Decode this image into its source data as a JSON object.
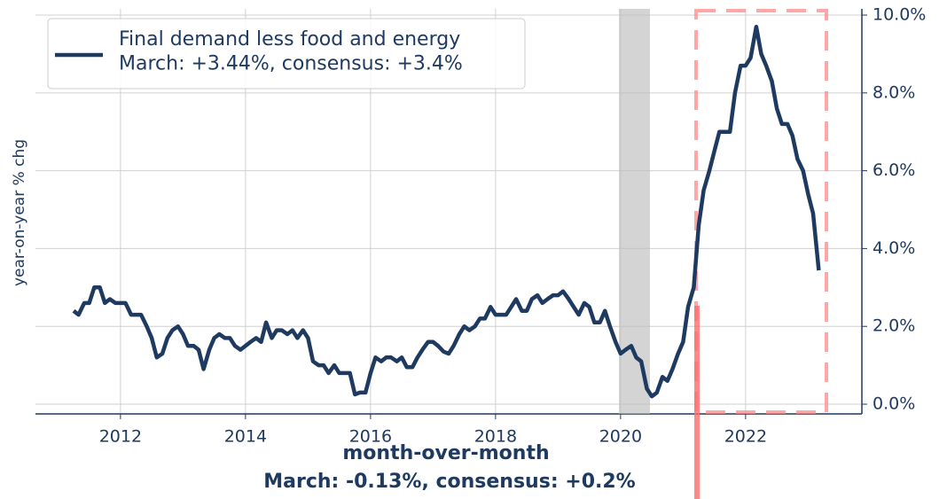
{
  "chart_data": {
    "type": "line",
    "ylabel": "year-on-year % chg",
    "annotations": [
      "month-over-month",
      "March:  -0.13%, consensus: +0.2%"
    ],
    "legend_position": "upper left",
    "grid": true,
    "xlim": [
      2010.64,
      2023.86
    ],
    "xticks": [
      2012,
      2014,
      2016,
      2018,
      2020,
      2022
    ],
    "ylim": [
      -0.25,
      10.16
    ],
    "yticks": [
      {
        "value": 0,
        "label": "0.0%"
      },
      {
        "value": 2,
        "label": "2.0%"
      },
      {
        "value": 4,
        "label": "4.0%"
      },
      {
        "value": 6,
        "label": "6.0%"
      },
      {
        "value": 8,
        "label": "8.0%"
      },
      {
        "value": 10,
        "label": "10.0%"
      }
    ],
    "x": [
      2011.25,
      2011.33,
      2011.42,
      2011.5,
      2011.58,
      2011.67,
      2011.75,
      2011.83,
      2011.92,
      2012,
      2012.08,
      2012.17,
      2012.25,
      2012.33,
      2012.42,
      2012.5,
      2012.58,
      2012.67,
      2012.75,
      2012.83,
      2012.92,
      2013,
      2013.08,
      2013.17,
      2013.25,
      2013.33,
      2013.42,
      2013.5,
      2013.58,
      2013.67,
      2013.75,
      2013.83,
      2013.92,
      2014,
      2014.08,
      2014.17,
      2014.25,
      2014.33,
      2014.42,
      2014.5,
      2014.58,
      2014.67,
      2014.75,
      2014.83,
      2014.92,
      2015,
      2015.08,
      2015.17,
      2015.25,
      2015.33,
      2015.42,
      2015.5,
      2015.58,
      2015.67,
      2015.75,
      2015.83,
      2015.92,
      2016,
      2016.08,
      2016.17,
      2016.25,
      2016.33,
      2016.42,
      2016.5,
      2016.58,
      2016.67,
      2016.75,
      2016.83,
      2016.92,
      2017,
      2017.08,
      2017.17,
      2017.25,
      2017.33,
      2017.42,
      2017.5,
      2017.58,
      2017.67,
      2017.75,
      2017.83,
      2017.92,
      2018,
      2018.08,
      2018.17,
      2018.25,
      2018.33,
      2018.42,
      2018.5,
      2018.58,
      2018.67,
      2018.75,
      2018.83,
      2018.92,
      2019,
      2019.08,
      2019.17,
      2019.25,
      2019.33,
      2019.42,
      2019.5,
      2019.58,
      2019.67,
      2019.75,
      2019.83,
      2019.92,
      2020,
      2020.08,
      2020.17,
      2020.25,
      2020.33,
      2020.42,
      2020.5,
      2020.58,
      2020.67,
      2020.75,
      2020.83,
      2020.92,
      2021,
      2021.08,
      2021.17,
      2021.25,
      2021.33,
      2021.42,
      2021.5,
      2021.58,
      2021.67,
      2021.75,
      2021.83,
      2021.92,
      2022,
      2022.08,
      2022.17,
      2022.25,
      2022.33,
      2022.42,
      2022.5,
      2022.58,
      2022.67,
      2022.75,
      2022.83,
      2022.92,
      2023,
      2023.08,
      2023.17
    ],
    "series": [
      {
        "name": "Final demand less food and energy\nMarch:  +3.44%, consensus: +3.4%",
        "color": "#1f3a60",
        "values": [
          2.4,
          2.3,
          2.6,
          2.6,
          3.0,
          3.0,
          2.6,
          2.7,
          2.6,
          2.6,
          2.6,
          2.3,
          2.3,
          2.3,
          2.0,
          1.7,
          1.2,
          1.3,
          1.7,
          1.9,
          2.0,
          1.8,
          1.5,
          1.5,
          1.4,
          0.9,
          1.4,
          1.7,
          1.8,
          1.7,
          1.7,
          1.5,
          1.4,
          1.5,
          1.6,
          1.7,
          1.6,
          2.1,
          1.7,
          1.9,
          1.9,
          1.8,
          1.9,
          1.7,
          1.9,
          1.7,
          1.1,
          1.0,
          1.0,
          0.8,
          1.0,
          0.8,
          0.8,
          0.8,
          0.25,
          0.3,
          0.3,
          0.8,
          1.2,
          1.1,
          1.2,
          1.2,
          1.1,
          1.2,
          0.95,
          0.95,
          1.2,
          1.4,
          1.6,
          1.6,
          1.5,
          1.35,
          1.3,
          1.5,
          1.8,
          2.0,
          1.9,
          2.0,
          2.2,
          2.2,
          2.5,
          2.3,
          2.3,
          2.3,
          2.5,
          2.7,
          2.4,
          2.4,
          2.7,
          2.8,
          2.6,
          2.7,
          2.8,
          2.8,
          2.9,
          2.7,
          2.5,
          2.3,
          2.6,
          2.5,
          2.1,
          2.1,
          2.4,
          2.0,
          1.6,
          1.3,
          1.4,
          1.5,
          1.2,
          1.1,
          0.4,
          0.2,
          0.3,
          0.7,
          0.6,
          0.9,
          1.3,
          1.6,
          2.5,
          3.0,
          4.6,
          5.5,
          6.0,
          6.5,
          7.0,
          7.0,
          7.0,
          8.0,
          8.7,
          8.7,
          8.9,
          9.7,
          9.0,
          8.7,
          8.3,
          7.6,
          7.2,
          7.2,
          6.9,
          6.3,
          6.0,
          5.4,
          4.9,
          3.44
        ]
      }
    ]
  }
}
